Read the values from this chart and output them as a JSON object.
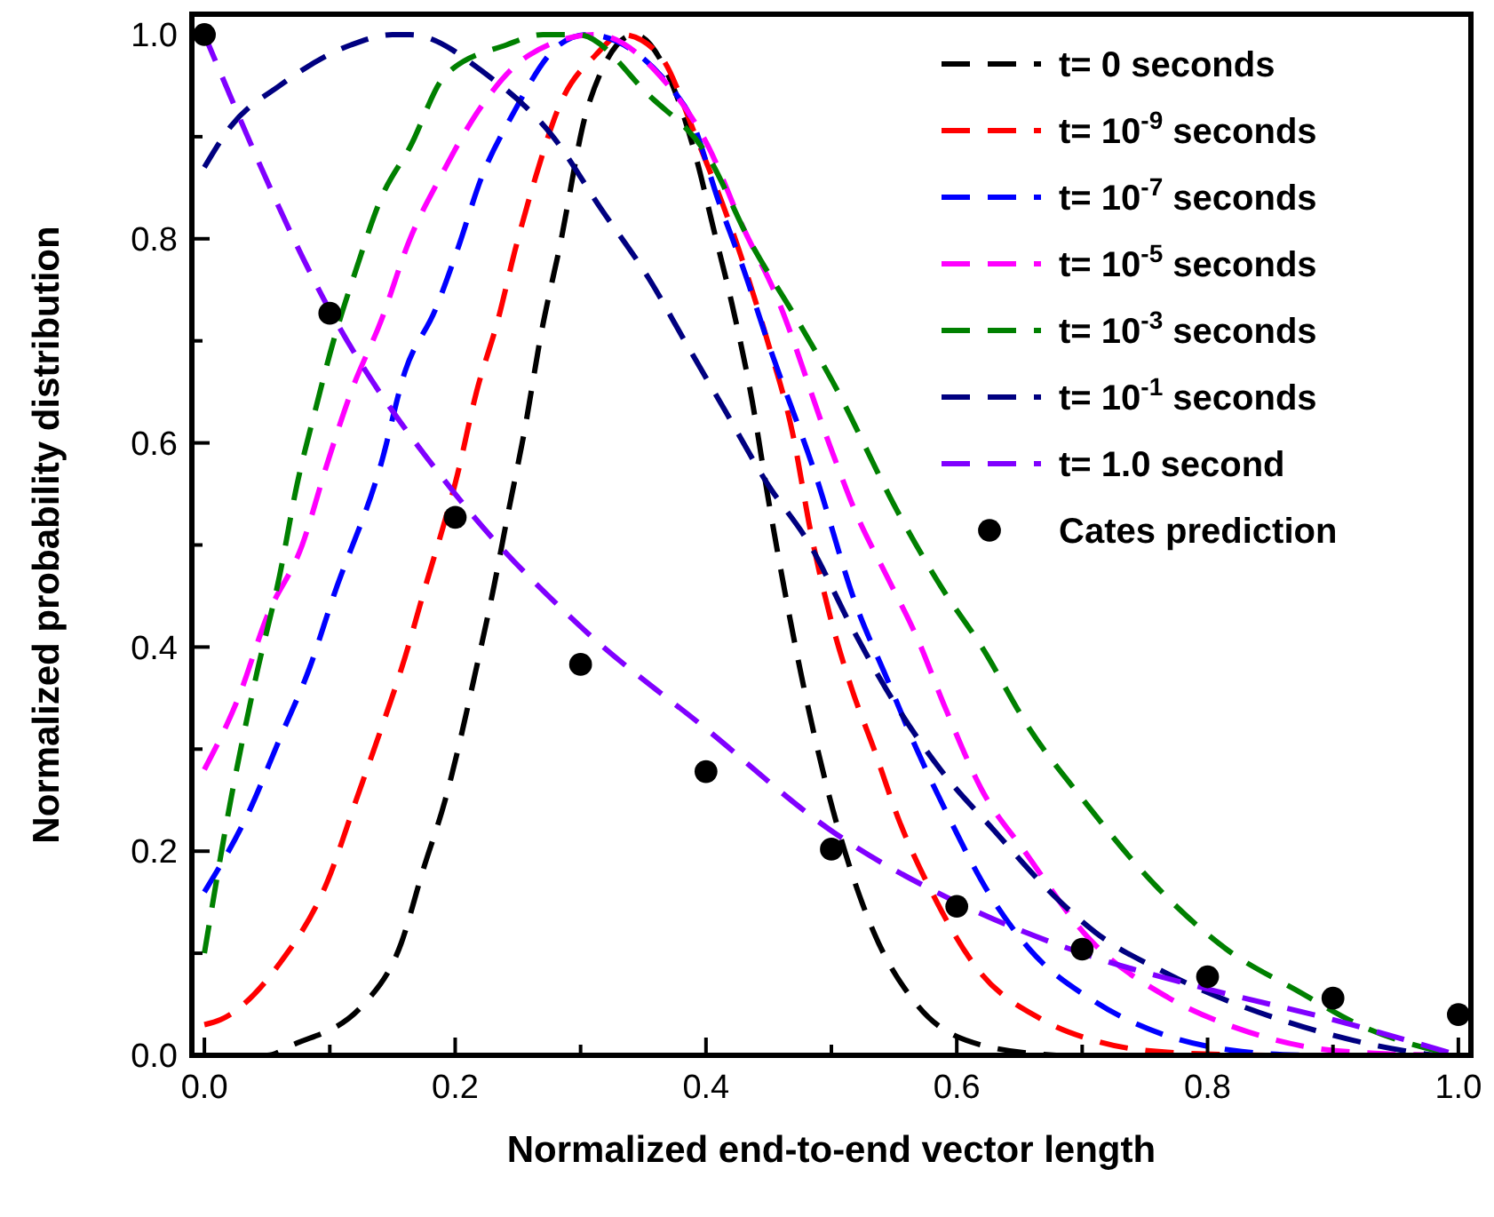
{
  "chart_data": {
    "type": "line",
    "xlabel": "Normalized end-to-end vector length",
    "ylabel": "Normalized probability distribution",
    "xlim": [
      -0.01,
      1.01
    ],
    "ylim": [
      0,
      1.02
    ],
    "xticks": [
      {
        "value": 0,
        "label": "0.0"
      },
      {
        "value": 0.1,
        "label": null
      },
      {
        "value": 0.2,
        "label": "0.2"
      },
      {
        "value": 0.3,
        "label": null
      },
      {
        "value": 0.4,
        "label": "0.4"
      },
      {
        "value": 0.5,
        "label": null
      },
      {
        "value": 0.6,
        "label": "0.6"
      },
      {
        "value": 0.7,
        "label": null
      },
      {
        "value": 0.8,
        "label": "0.8"
      },
      {
        "value": 0.9,
        "label": null
      },
      {
        "value": 1,
        "label": "1.0"
      }
    ],
    "yticks": [
      {
        "value": 0,
        "label": "0.0"
      },
      {
        "value": 0.1,
        "label": null
      },
      {
        "value": 0.2,
        "label": "0.2"
      },
      {
        "value": 0.3,
        "label": null
      },
      {
        "value": 0.4,
        "label": "0.4"
      },
      {
        "value": 0.5,
        "label": null
      },
      {
        "value": 0.6,
        "label": "0.6"
      },
      {
        "value": 0.7,
        "label": null
      },
      {
        "value": 0.8,
        "label": "0.8"
      },
      {
        "value": 0.9,
        "label": null
      },
      {
        "value": 1,
        "label": "1.0"
      }
    ],
    "legend": "top right",
    "line_style": "dashed",
    "grid": false,
    "series": [
      {
        "name": "t= 0 seconds",
        "color": "#000000",
        "x": [
          0,
          0.05,
          0.07,
          0.127,
          0.157,
          0.174,
          0.192,
          0.217,
          0.231,
          0.242,
          0.255,
          0.269,
          0.283,
          0.306,
          0.343,
          0.37,
          0.392,
          0.406,
          0.42,
          0.437,
          0.449,
          0.497,
          0.534,
          0.568,
          0.62,
          0.68
        ],
        "values": [
          0,
          0,
          0.01,
          0.05,
          0.11,
          0.18,
          0.25,
          0.38,
          0.46,
          0.53,
          0.61,
          0.71,
          0.79,
          0.93,
          1.0,
          0.96,
          0.88,
          0.81,
          0.74,
          0.64,
          0.55,
          0.26,
          0.12,
          0.05,
          0.01,
          0
        ]
      },
      {
        "name": "t= 10$^{-9}$ seconds",
        "color": "#ff0000",
        "x": [
          0,
          0.013,
          0.06,
          0.098,
          0.121,
          0.141,
          0.16,
          0.174,
          0.202,
          0.217,
          0.234,
          0.248,
          0.264,
          0.283,
          0.312,
          0.333,
          0.363,
          0.392,
          0.426,
          0.449,
          0.469,
          0.484,
          0.499,
          0.516,
          0.534,
          0.554,
          0.58,
          0.615,
          0.668,
          0.711,
          0.768,
          0.85
        ],
        "values": [
          0.03,
          0.035,
          0.09,
          0.17,
          0.25,
          0.32,
          0.39,
          0.45,
          0.57,
          0.65,
          0.72,
          0.79,
          0.86,
          0.93,
          0.98,
          1.0,
          0.98,
          0.9,
          0.79,
          0.7,
          0.61,
          0.51,
          0.43,
          0.36,
          0.3,
          0.23,
          0.16,
          0.087,
          0.035,
          0.014,
          0.003,
          0
        ]
      },
      {
        "name": "t= 10$^{-7}$ seconds",
        "color": "#0000ff",
        "x": [
          0,
          0.036,
          0.06,
          0.084,
          0.103,
          0.141,
          0.16,
          0.184,
          0.202,
          0.221,
          0.245,
          0.283,
          0.305,
          0.383,
          0.412,
          0.43,
          0.449,
          0.487,
          0.52,
          0.544,
          0.568,
          0.591,
          0.625,
          0.658,
          0.711,
          0.768,
          0.819,
          0.876
        ],
        "values": [
          0.16,
          0.24,
          0.31,
          0.38,
          0.45,
          0.58,
          0.67,
          0.73,
          0.79,
          0.86,
          0.92,
          0.99,
          1.0,
          0.93,
          0.83,
          0.77,
          0.7,
          0.57,
          0.44,
          0.37,
          0.3,
          0.24,
          0.16,
          0.104,
          0.052,
          0.019,
          0.005,
          0
        ]
      },
      {
        "name": "t= 10$^{-5}$ seconds",
        "color": "#ff00ff",
        "x": [
          0,
          0.027,
          0.05,
          0.078,
          0.098,
          0.117,
          0.141,
          0.164,
          0.188,
          0.221,
          0.259,
          0.312,
          0.363,
          0.402,
          0.43,
          0.454,
          0.501,
          0.52,
          0.544,
          0.568,
          0.591,
          0.62,
          0.654,
          0.705,
          0.768,
          0.825,
          0.876,
          0.933,
          1.0
        ],
        "values": [
          0.28,
          0.35,
          0.43,
          0.5,
          0.58,
          0.65,
          0.72,
          0.8,
          0.86,
          0.93,
          0.98,
          1.0,
          0.96,
          0.89,
          0.81,
          0.75,
          0.59,
          0.53,
          0.47,
          0.41,
          0.34,
          0.26,
          0.2,
          0.115,
          0.057,
          0.026,
          0.009,
          0.002,
          0
        ]
      },
      {
        "name": "t= 10$^{-3}$ seconds",
        "color": "#008000",
        "x": [
          0,
          0.021,
          0.041,
          0.06,
          0.074,
          0.088,
          0.103,
          0.121,
          0.141,
          0.164,
          0.192,
          0.241,
          0.27,
          0.298,
          0.355,
          0.402,
          0.434,
          0.473,
          0.501,
          0.554,
          0.587,
          0.62,
          0.658,
          0.701,
          0.758,
          0.815,
          0.872,
          0.924,
          0.981,
          1.0
        ],
        "values": [
          0.1,
          0.25,
          0.37,
          0.47,
          0.56,
          0.63,
          0.7,
          0.77,
          0.84,
          0.89,
          0.96,
          0.99,
          1.0,
          1.0,
          0.94,
          0.88,
          0.8,
          0.72,
          0.66,
          0.53,
          0.46,
          0.4,
          0.32,
          0.25,
          0.167,
          0.104,
          0.063,
          0.028,
          0.005,
          0
        ]
      },
      {
        "name": "t= 10$^{-1}$ seconds",
        "color": "#000080",
        "x": [
          0,
          0.021,
          0.06,
          0.117,
          0.15,
          0.164,
          0.226,
          0.278,
          0.316,
          0.355,
          0.383,
          0.416,
          0.449,
          0.483,
          0.516,
          0.548,
          0.587,
          0.63,
          0.677,
          0.711,
          0.768,
          0.876,
          0.933,
          0.98
        ],
        "values": [
          0.87,
          0.91,
          0.95,
          0.99,
          1.0,
          1.0,
          0.96,
          0.9,
          0.83,
          0.76,
          0.7,
          0.63,
          0.56,
          0.5,
          0.42,
          0.35,
          0.28,
          0.22,
          0.157,
          0.12,
          0.08,
          0.028,
          0.01,
          0
        ]
      },
      {
        "name": "t= 1.0 second",
        "color": "#8000ff",
        "x": [
          0,
          0.1,
          0.2,
          0.3,
          0.4,
          0.5,
          0.6,
          0.7,
          0.8,
          0.9,
          1.0
        ],
        "values": [
          1.0,
          0.73,
          0.55,
          0.42,
          0.32,
          0.22,
          0.15,
          0.1,
          0.065,
          0.035,
          0
        ]
      },
      {
        "name": "Cates prediction",
        "type": "scatter",
        "marker": "circle",
        "color": "#000000",
        "x": [
          0,
          0.1,
          0.2,
          0.3,
          0.4,
          0.5,
          0.6,
          0.7,
          0.8,
          0.9,
          1.0
        ],
        "values": [
          1.0,
          0.727,
          0.527,
          0.383,
          0.278,
          0.202,
          0.146,
          0.104,
          0.077,
          0.056,
          0.04
        ]
      }
    ]
  }
}
